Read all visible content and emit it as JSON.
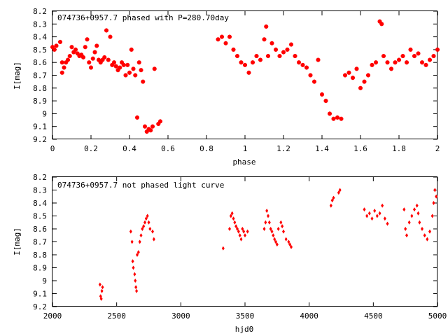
{
  "chart_data": [
    {
      "type": "scatter",
      "title": "074736+0957.7 phased with P=280.70day",
      "xlabel": "phase",
      "ylabel": "I[mag]",
      "xlim": [
        0,
        2
      ],
      "ylim": [
        9.2,
        8.2
      ],
      "y_inverted": true,
      "x_ticks": [
        "0",
        "0.2",
        "0.4",
        "0.6",
        "0.8",
        "1",
        "1.2",
        "1.4",
        "1.6",
        "1.8",
        "2"
      ],
      "y_ticks": [
        "8.2",
        "8.3",
        "8.4",
        "8.5",
        "8.6",
        "8.7",
        "8.8",
        "8.9",
        "9",
        "9.1",
        "9.2"
      ],
      "marker_color": "#ff0000",
      "grid": false,
      "x": [
        0.0,
        0.01,
        0.02,
        0.04,
        0.05,
        0.05,
        0.06,
        0.07,
        0.08,
        0.09,
        0.1,
        0.11,
        0.12,
        0.13,
        0.14,
        0.15,
        0.16,
        0.17,
        0.18,
        0.19,
        0.2,
        0.21,
        0.22,
        0.23,
        0.24,
        0.25,
        0.26,
        0.27,
        0.28,
        0.29,
        0.3,
        0.31,
        0.32,
        0.33,
        0.34,
        0.35,
        0.36,
        0.37,
        0.38,
        0.39,
        0.4,
        0.41,
        0.42,
        0.43,
        0.44,
        0.45,
        0.46,
        0.47,
        0.48,
        0.49,
        0.5,
        0.51,
        0.52,
        0.53,
        0.55,
        0.56,
        0.86,
        0.88,
        0.9,
        0.92,
        0.94,
        0.96,
        0.98,
        1.0,
        1.02,
        1.04,
        1.06,
        1.08,
        1.1,
        1.11,
        1.12,
        1.14,
        1.16,
        1.18,
        1.2,
        1.22,
        1.24,
        1.26,
        1.28,
        1.3,
        1.32,
        1.34,
        1.36,
        1.38,
        1.4,
        1.42,
        1.44,
        1.46,
        1.48,
        1.5,
        1.52,
        1.54,
        1.56,
        1.58,
        1.6,
        1.62,
        1.64,
        1.66,
        1.68,
        1.7,
        1.71,
        1.72,
        1.74,
        1.76,
        1.78,
        1.8,
        1.82,
        1.84,
        1.86,
        1.88,
        1.9,
        1.92,
        1.94,
        1.96,
        1.98,
        2.0
      ],
      "y": [
        8.48,
        8.5,
        8.47,
        8.44,
        8.68,
        8.6,
        8.64,
        8.6,
        8.58,
        8.55,
        8.48,
        8.52,
        8.5,
        8.53,
        8.55,
        8.54,
        8.56,
        8.48,
        8.42,
        8.6,
        8.64,
        8.57,
        8.52,
        8.47,
        8.58,
        8.6,
        8.58,
        8.56,
        8.35,
        8.58,
        8.4,
        8.62,
        8.6,
        8.63,
        8.66,
        8.64,
        8.6,
        8.62,
        8.7,
        8.62,
        8.68,
        8.5,
        8.65,
        8.7,
        9.03,
        8.6,
        8.66,
        8.75,
        9.1,
        9.14,
        9.12,
        9.13,
        9.1,
        8.65,
        9.08,
        9.06,
        8.42,
        8.4,
        8.45,
        8.4,
        8.5,
        8.55,
        8.6,
        8.62,
        8.68,
        8.6,
        8.55,
        8.58,
        8.42,
        8.32,
        8.55,
        8.45,
        8.5,
        8.55,
        8.52,
        8.5,
        8.46,
        8.55,
        8.6,
        8.62,
        8.64,
        8.7,
        8.75,
        8.58,
        8.85,
        8.9,
        9.0,
        9.04,
        9.03,
        9.04,
        8.7,
        8.68,
        8.72,
        8.65,
        8.8,
        8.75,
        8.7,
        8.62,
        8.6,
        8.28,
        8.3,
        8.55,
        8.6,
        8.65,
        8.6,
        8.58,
        8.55,
        8.6,
        8.5,
        8.55,
        8.53,
        8.6,
        8.62,
        8.58,
        8.55,
        8.5
      ]
    },
    {
      "type": "scatter",
      "title": "074736+0957.7 not phased light curve",
      "xlabel": "hjd0",
      "ylabel": "I[mag]",
      "xlim": [
        2000,
        5000
      ],
      "ylim": [
        9.2,
        8.2
      ],
      "y_inverted": true,
      "x_ticks": [
        "2000",
        "2500",
        "3000",
        "3500",
        "4000",
        "4500",
        "5000"
      ],
      "y_ticks": [
        "8.2",
        "8.3",
        "8.4",
        "8.5",
        "8.6",
        "8.7",
        "8.8",
        "8.9",
        "9",
        "9.1",
        "9.2"
      ],
      "marker_color": "#ff0000",
      "grid": false,
      "x": [
        2370,
        2375,
        2380,
        2385,
        2390,
        2610,
        2620,
        2625,
        2630,
        2640,
        2645,
        2650,
        2655,
        2660,
        2670,
        2680,
        2690,
        2700,
        2710,
        2720,
        2730,
        2740,
        2750,
        2760,
        2780,
        2790,
        3330,
        3380,
        3390,
        3400,
        3410,
        3420,
        3430,
        3440,
        3450,
        3460,
        3470,
        3480,
        3490,
        3500,
        3520,
        3650,
        3660,
        3670,
        3680,
        3690,
        3700,
        3710,
        3720,
        3730,
        3740,
        3750,
        3760,
        3780,
        3790,
        3800,
        3820,
        3840,
        3850,
        3860,
        4170,
        4180,
        4190,
        4230,
        4240,
        4430,
        4450,
        4470,
        4490,
        4510,
        4530,
        4550,
        4570,
        4590,
        4610,
        4740,
        4750,
        4760,
        4780,
        4800,
        4820,
        4840,
        4850,
        4860,
        4880,
        4900,
        4920,
        4940,
        4960,
        4970,
        4980,
        4990
      ],
      "y": [
        9.03,
        9.12,
        9.14,
        9.08,
        9.05,
        8.62,
        8.7,
        8.85,
        8.9,
        8.95,
        9.0,
        9.05,
        9.08,
        8.8,
        8.78,
        8.7,
        8.65,
        8.6,
        8.58,
        8.55,
        8.52,
        8.5,
        8.55,
        8.6,
        8.62,
        8.68,
        8.75,
        8.6,
        8.5,
        8.48,
        8.52,
        8.55,
        8.58,
        8.6,
        8.62,
        8.65,
        8.68,
        8.6,
        8.62,
        8.65,
        8.62,
        8.6,
        8.55,
        8.46,
        8.5,
        8.55,
        8.6,
        8.62,
        8.65,
        8.68,
        8.7,
        8.72,
        8.6,
        8.55,
        8.58,
        8.62,
        8.68,
        8.7,
        8.72,
        8.74,
        8.42,
        8.38,
        8.36,
        8.32,
        8.3,
        8.45,
        8.5,
        8.48,
        8.52,
        8.46,
        8.5,
        8.48,
        8.42,
        8.52,
        8.56,
        8.45,
        8.6,
        8.65,
        8.55,
        8.5,
        8.45,
        8.42,
        8.48,
        8.55,
        8.6,
        8.65,
        8.68,
        8.62,
        8.5,
        8.4,
        8.3,
        8.35
      ]
    }
  ]
}
